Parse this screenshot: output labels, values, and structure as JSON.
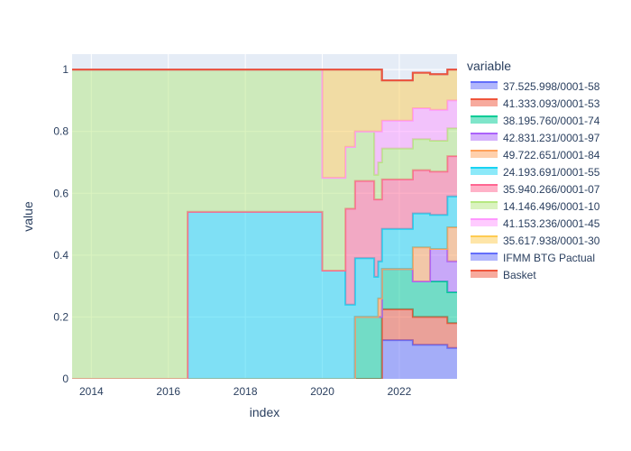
{
  "chart_data": {
    "type": "area",
    "stacked": true,
    "step": true,
    "xlabel": "index",
    "ylabel": "value",
    "xlim": [
      2013.5,
      2023.5
    ],
    "ylim": [
      0,
      1.05
    ],
    "x_ticks": [
      2014,
      2016,
      2018,
      2020,
      2022
    ],
    "y_ticks": [
      0,
      0.2,
      0.4,
      0.6,
      0.8,
      1
    ],
    "x_tick_labels": [
      "2014",
      "2016",
      "2018",
      "2020",
      "2022"
    ],
    "y_tick_labels": [
      "0",
      "0.2",
      "0.4",
      "0.6",
      "0.8",
      "1"
    ],
    "legend_title": "variable",
    "legend_position": "right",
    "grid": true,
    "plot_bg": "#e5ecf6",
    "x": [
      2013.5,
      2016.5,
      2020.0,
      2020.6,
      2020.85,
      2021.35,
      2021.45,
      2021.55,
      2022.35,
      2022.8,
      2023.25
    ],
    "series": [
      {
        "name": "37.525.998/0001-58",
        "color": "#636efa",
        "values": [
          0,
          0,
          0,
          0,
          0,
          0,
          0,
          0.125,
          0.11,
          0.11,
          0.1
        ]
      },
      {
        "name": "41.333.093/0001-53",
        "color": "#ef553b",
        "values": [
          0,
          0,
          0,
          0,
          0,
          0,
          0,
          0.1,
          0.09,
          0.09,
          0.08
        ]
      },
      {
        "name": "38.195.760/0001-74",
        "color": "#00cc96",
        "values": [
          0,
          0,
          0,
          0,
          0.2,
          0.2,
          0.2,
          0.13,
          0.115,
          0.115,
          0.1
        ]
      },
      {
        "name": "42.831.231/0001-97",
        "color": "#ab63fa",
        "values": [
          0,
          0,
          0,
          0,
          0,
          0,
          0,
          0,
          0,
          0.105,
          0.1
        ]
      },
      {
        "name": "49.722.651/0001-84",
        "color": "#ffa15a",
        "values": [
          0,
          0,
          0,
          0,
          0,
          0,
          0.06,
          0,
          0.11,
          0,
          0.11
        ]
      },
      {
        "name": "24.193.691/0001-55",
        "color": "#19d3f3",
        "values": [
          0,
          0.54,
          0.35,
          0.24,
          0.19,
          0.13,
          0.12,
          0.13,
          0.11,
          0.11,
          0.1
        ]
      },
      {
        "name": "35.940.266/0001-07",
        "color": "#ff6692",
        "values": [
          0,
          0,
          0,
          0.31,
          0.25,
          0.25,
          0.2,
          0.16,
          0.14,
          0.14,
          0.13
        ]
      },
      {
        "name": "14.146.496/0001-10",
        "color": "#b6e880",
        "values": [
          1,
          0.46,
          0.3,
          0.2,
          0.16,
          0.08,
          0.12,
          0.1,
          0.1,
          0.1,
          0.09
        ]
      },
      {
        "name": "41.153.236/0001-45",
        "color": "#ff97ff",
        "values": [
          0,
          0,
          0,
          0,
          0,
          0.14,
          0.1,
          0.09,
          0.1,
          0.1,
          0.09
        ]
      },
      {
        "name": "35.617.938/0001-30",
        "color": "#fecb52",
        "values": [
          0,
          0,
          0.35,
          0.25,
          0.2,
          0.2,
          0.2,
          0.13,
          0.115,
          0.115,
          0.1
        ]
      },
      {
        "name": "IFMM BTG Pactual",
        "color": "#636efa",
        "values": [
          0,
          0,
          0,
          0,
          0,
          0,
          0,
          0,
          0,
          0,
          0
        ]
      },
      {
        "name": "Basket",
        "color": "#ef553b",
        "values": [
          0,
          0,
          0,
          0,
          0,
          0,
          0,
          0,
          0,
          0,
          0
        ]
      }
    ]
  }
}
